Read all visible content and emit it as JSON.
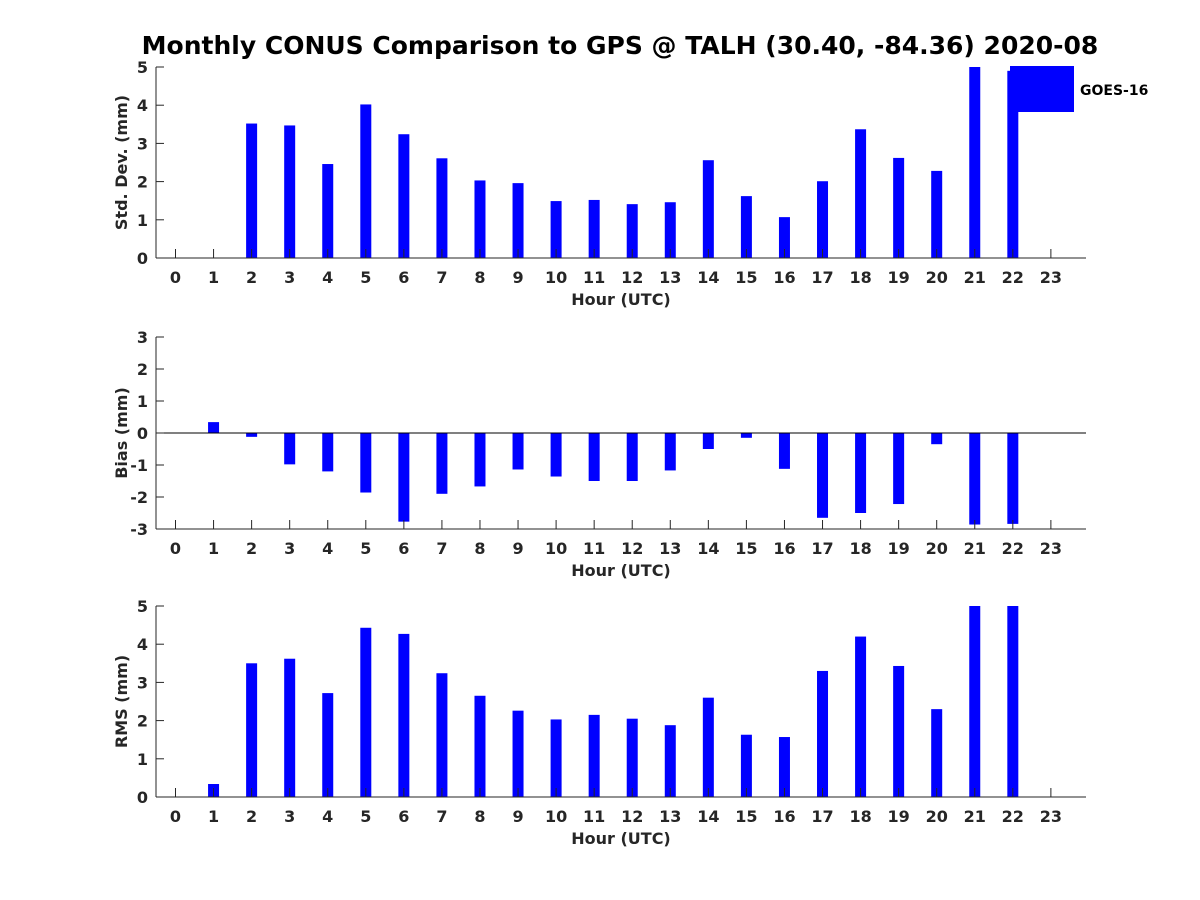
{
  "chart_data": {
    "title": "Monthly CONUS Comparison to GPS @ TALH (30.40, -84.36) 2020-08",
    "bar_color": "#0000ff",
    "legend": {
      "label": "GOES-16",
      "placement": "top-right"
    },
    "hours": [
      0,
      1,
      2,
      3,
      4,
      5,
      6,
      7,
      8,
      9,
      10,
      11,
      12,
      13,
      14,
      15,
      16,
      17,
      18,
      19,
      20,
      21,
      22,
      23
    ],
    "panels": [
      {
        "type": "bar",
        "ylabel": "Std. Dev. (mm)",
        "xlabel": "Hour (UTC)",
        "ylim": [
          0,
          5
        ],
        "yticks": [
          0,
          1,
          2,
          3,
          4,
          5
        ],
        "values": [
          null,
          null,
          3.52,
          3.47,
          2.46,
          4.02,
          3.24,
          2.61,
          2.03,
          1.96,
          1.49,
          1.52,
          1.41,
          1.46,
          2.56,
          1.62,
          1.07,
          2.01,
          3.37,
          2.62,
          2.28,
          5.0,
          4.9,
          null
        ]
      },
      {
        "type": "bar",
        "ylabel": "Bias (mm)",
        "xlabel": "Hour (UTC)",
        "ylim": [
          -3,
          3
        ],
        "yticks": [
          -3,
          -2,
          -1,
          0,
          1,
          2,
          3
        ],
        "values": [
          null,
          0.34,
          -0.12,
          -0.98,
          -1.2,
          -1.86,
          -2.77,
          -1.9,
          -1.67,
          -1.14,
          -1.36,
          -1.5,
          -1.5,
          -1.17,
          -0.5,
          -0.15,
          -1.12,
          -2.65,
          -2.5,
          -2.22,
          -0.35,
          -2.86,
          -2.84,
          null
        ]
      },
      {
        "type": "bar",
        "ylabel": "RMS (mm)",
        "xlabel": "Hour (UTC)",
        "ylim": [
          0,
          5
        ],
        "yticks": [
          0,
          1,
          2,
          3,
          4,
          5
        ],
        "values": [
          null,
          0.34,
          3.5,
          3.62,
          2.72,
          4.43,
          4.27,
          3.24,
          2.65,
          2.26,
          2.03,
          2.15,
          2.05,
          1.88,
          2.6,
          1.63,
          1.57,
          3.3,
          4.2,
          3.43,
          2.3,
          5.0,
          5.0,
          null
        ]
      }
    ]
  }
}
